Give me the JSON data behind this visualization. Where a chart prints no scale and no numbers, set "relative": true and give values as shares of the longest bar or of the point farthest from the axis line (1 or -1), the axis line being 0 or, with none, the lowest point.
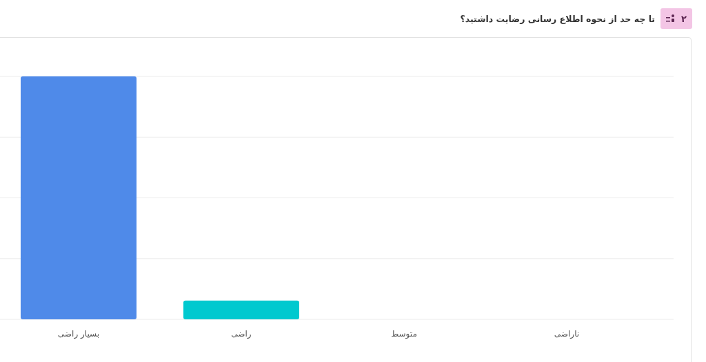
{
  "chart_data": {
    "type": "bar",
    "title": "تا چه حد از نحوه اطلاع رسانی رضایت داشتید؟",
    "annotations": [
      "۲"
    ],
    "categories": [
      "بسیار راضی",
      "راضی",
      "متوسط",
      "ناراضی"
    ],
    "values": [
      1,
      0.077,
      0,
      0
    ],
    "colors": [
      "#4f8ae9",
      "#00c9cf",
      null,
      null
    ],
    "relative": true,
    "grid": "y"
  }
}
